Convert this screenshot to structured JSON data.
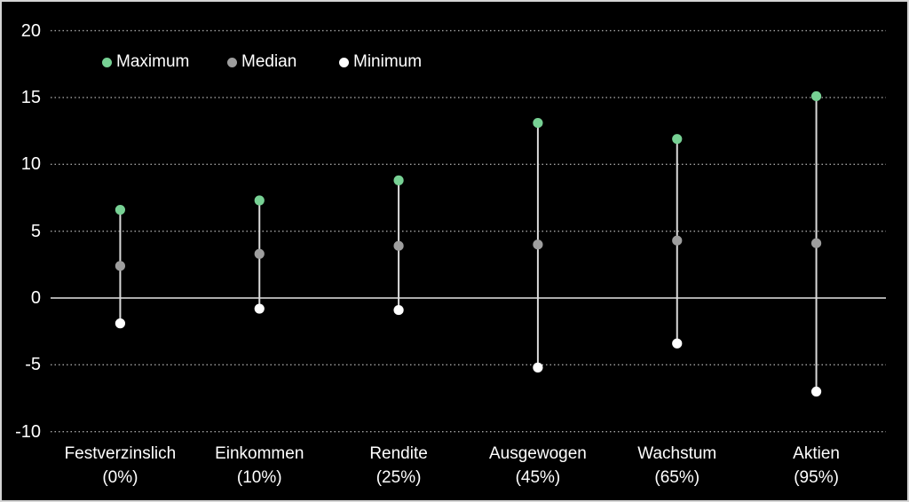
{
  "window": {
    "background": "#000000",
    "border_color": "#d4d4d4"
  },
  "chart_data": {
    "type": "scatter",
    "subtype": "min-median-max-range-stem-plot",
    "title": "",
    "xlabel": "",
    "ylabel": "",
    "ylim": [
      -10,
      20
    ],
    "yticks": [
      20,
      15,
      10,
      5,
      0,
      -5,
      -10
    ],
    "grid": "horizontal dotted gridlines, solid zero axis line",
    "legend_position": "top-left inside plot",
    "categories": [
      {
        "name": "Festverzinslich",
        "allocation": "(0%)"
      },
      {
        "name": "Einkommen",
        "allocation": "(10%)"
      },
      {
        "name": "Rendite",
        "allocation": "(25%)"
      },
      {
        "name": "Ausgewogen",
        "allocation": "(45%)"
      },
      {
        "name": "Wachstum",
        "allocation": "(65%)"
      },
      {
        "name": "Aktien",
        "allocation": "(95%)"
      }
    ],
    "series": [
      {
        "name": "Maximum",
        "color": "#77d194",
        "values": [
          6.6,
          7.3,
          8.8,
          13.1,
          11.9,
          15.1
        ]
      },
      {
        "name": "Median",
        "color": "#9e9e9e",
        "values": [
          2.4,
          3.3,
          3.9,
          4.0,
          4.3,
          4.1
        ]
      },
      {
        "name": "Minimum",
        "color": "#ffffff",
        "values": [
          -1.9,
          -0.8,
          -0.9,
          -5.2,
          -3.4,
          -7.0
        ]
      }
    ],
    "stem_color": "#d9d9d9",
    "gridline_color": "#a3a3a3",
    "zero_line_color": "#e6e6e6",
    "axis_text_color": "#ffffff"
  }
}
